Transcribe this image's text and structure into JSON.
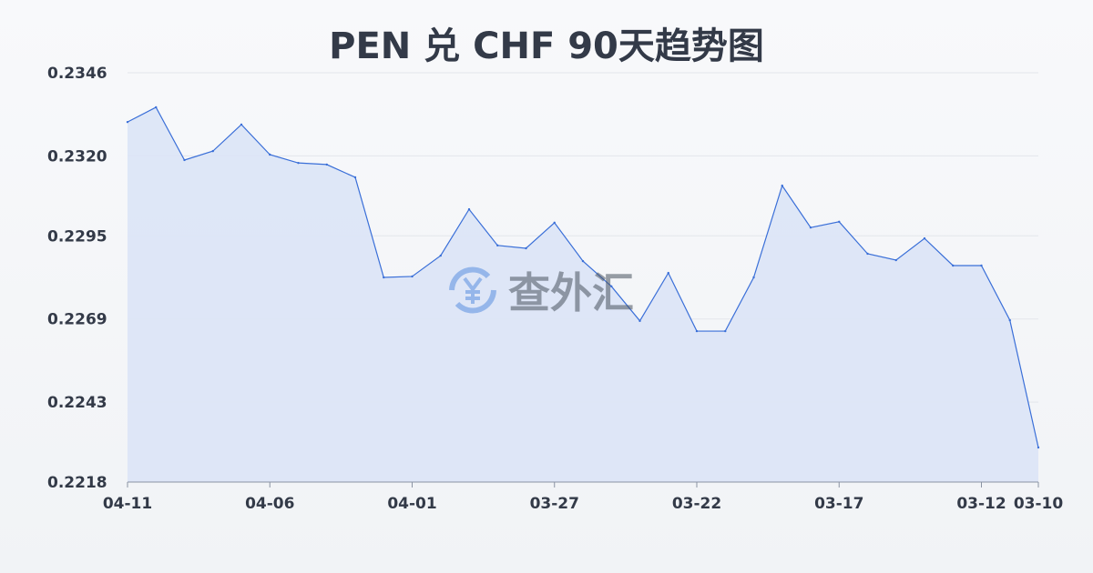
{
  "chart_data": {
    "type": "area",
    "title": "PEN 兑 CHF 90天趋势图",
    "xlabel": "",
    "ylabel": "",
    "ylim": [
      0.2218,
      0.2346
    ],
    "y_ticks": [
      "0.2346",
      "0.2320",
      "0.2295",
      "0.2269",
      "0.2243",
      "0.2218"
    ],
    "x_ticks": [
      "04-11",
      "04-06",
      "04-01",
      "03-27",
      "03-22",
      "03-17",
      "03-12",
      "03-10"
    ],
    "grid": true,
    "x": [
      "04-11",
      "04-10",
      "04-09",
      "04-08",
      "04-07",
      "04-06",
      "04-05",
      "04-04",
      "04-03",
      "04-02",
      "04-01",
      "03-31",
      "03-30",
      "03-29",
      "03-28",
      "03-27",
      "03-26",
      "03-25",
      "03-24",
      "03-23",
      "03-22",
      "03-21",
      "03-20",
      "03-19",
      "03-18",
      "03-17",
      "03-16",
      "03-15",
      "03-14",
      "03-13",
      "03-12",
      "03-11",
      "03-10"
    ],
    "values": [
      0.23306,
      0.23352,
      0.23187,
      0.23215,
      0.23298,
      0.23204,
      0.23178,
      0.23173,
      0.23133,
      0.2282,
      0.22823,
      0.22888,
      0.23033,
      0.2292,
      0.22911,
      0.22991,
      0.22871,
      0.22792,
      0.22684,
      0.22834,
      0.22652,
      0.22652,
      0.2282,
      0.23107,
      0.22976,
      0.22994,
      0.22894,
      0.22874,
      0.22942,
      0.22857,
      0.22857,
      0.22686,
      0.22288
    ],
    "colors": {
      "line": "#3a6fd8",
      "fill": "#dbe4f6",
      "grid": "#e3e6eb"
    }
  },
  "watermark": {
    "text": "查外汇",
    "icon": "yen-exchange-icon"
  }
}
